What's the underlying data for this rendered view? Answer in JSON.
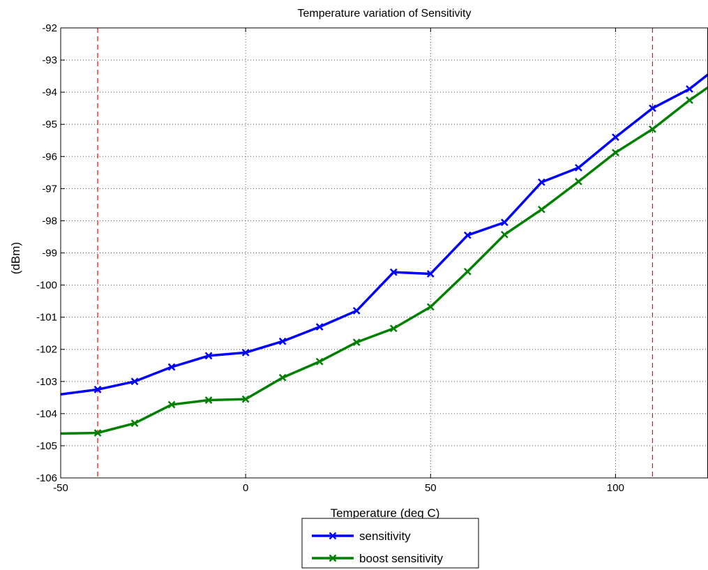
{
  "chart_data": {
    "type": "line",
    "title": "Temperature variation of Sensitivity",
    "xlabel": "Temperature (deg C)",
    "ylabel": "(dBm)",
    "xlim": [
      -50,
      125
    ],
    "ylim": [
      -106,
      -92
    ],
    "x_ticks": [
      -50,
      0,
      50,
      100
    ],
    "y_ticks": [
      -106,
      -105,
      -104,
      -103,
      -102,
      -101,
      -100,
      -99,
      -98,
      -97,
      -96,
      -95,
      -94,
      -93,
      -92
    ],
    "grid": true,
    "legend_position": "bottom-center",
    "reference_lines": [
      {
        "x": -40,
        "color": "#ff0000",
        "style": "dashed"
      },
      {
        "x": 110,
        "color": "#ff0000",
        "style": "dashed"
      }
    ],
    "series": [
      {
        "name": "sensitivity",
        "color": "#0000ff",
        "marker": "x",
        "x": [
          -40,
          -30,
          -20,
          -10,
          0,
          10,
          20,
          30,
          40,
          50,
          60,
          70,
          80,
          90,
          100,
          110,
          120
        ],
        "y": [
          -103.25,
          -103.0,
          -102.55,
          -102.2,
          -102.1,
          -101.75,
          -101.3,
          -100.8,
          -99.6,
          -99.65,
          -98.45,
          -98.05,
          -96.8,
          -96.35,
          -95.4,
          -94.5,
          -93.9
        ],
        "line_start": {
          "x": -50,
          "y": -103.4
        },
        "line_end": {
          "x": 125,
          "y": -93.45
        }
      },
      {
        "name": "boost sensitivity",
        "color": "#008000",
        "marker": "x",
        "x": [
          -40,
          -30,
          -20,
          -10,
          0,
          10,
          20,
          30,
          40,
          50,
          60,
          70,
          80,
          90,
          100,
          110,
          120
        ],
        "y": [
          -104.6,
          -104.3,
          -103.72,
          -103.58,
          -103.55,
          -102.88,
          -102.38,
          -101.78,
          -101.35,
          -100.68,
          -99.58,
          -98.43,
          -97.65,
          -96.78,
          -95.88,
          -95.15,
          -94.25
        ],
        "line_start": {
          "x": -50,
          "y": -104.62
        },
        "line_end": {
          "x": 125,
          "y": -93.85
        }
      }
    ]
  }
}
